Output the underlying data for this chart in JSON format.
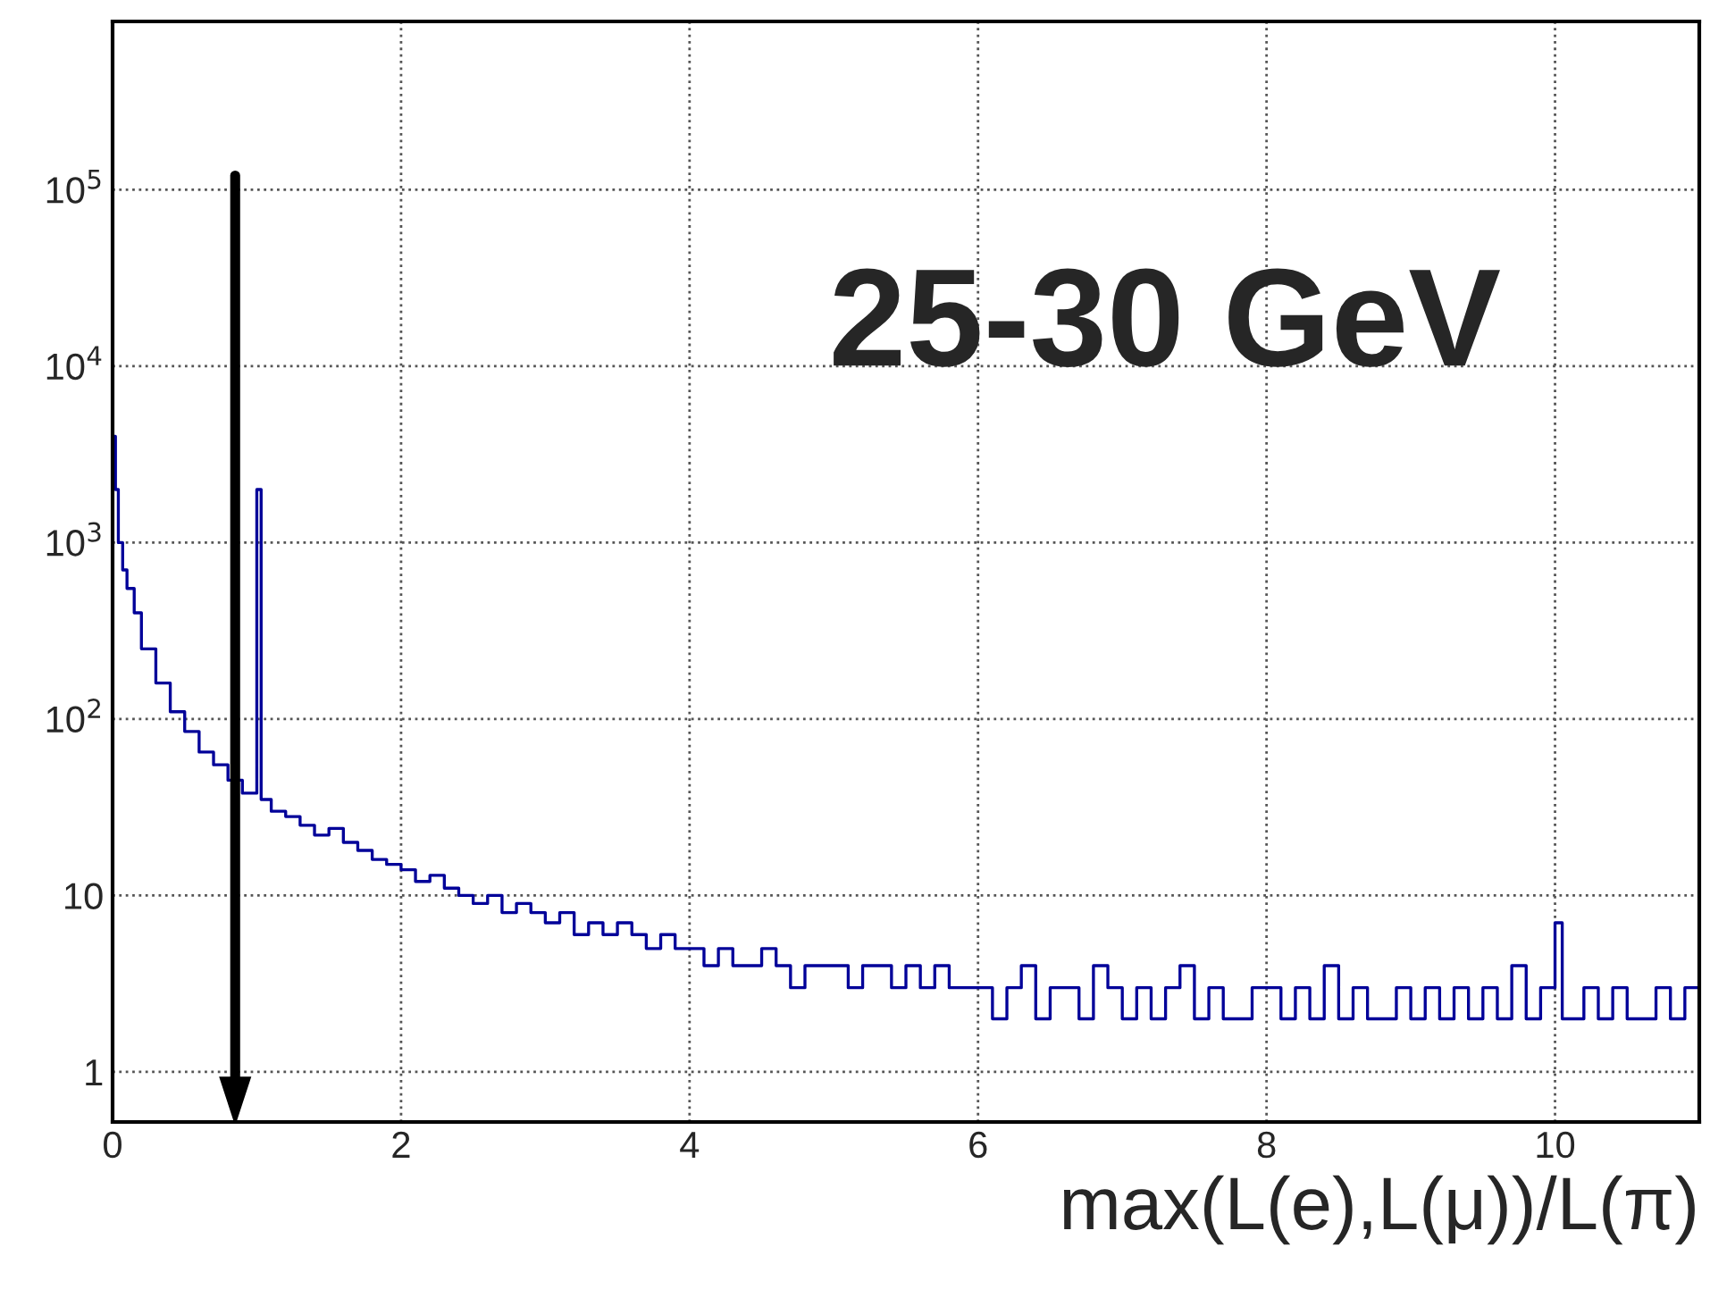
{
  "chart_data": {
    "type": "histogram",
    "xlabel": "max(L(e),L(μ))/L(π)",
    "annotations": [
      "25-30 GeV"
    ],
    "bins": [
      0,
      0.02,
      0.04,
      0.07,
      0.1,
      0.15,
      0.2,
      0.3,
      0.4,
      0.5,
      0.6,
      0.7,
      0.8,
      0.9,
      1.0,
      1.03,
      1.1,
      1.2,
      1.3,
      1.4,
      1.5,
      1.6,
      1.7,
      1.8,
      1.9,
      2.0,
      2.1,
      2.2,
      2.3,
      2.4,
      2.5,
      2.6,
      2.7,
      2.8,
      2.9,
      3.0,
      3.1,
      3.2,
      3.3,
      3.4,
      3.5,
      3.6,
      3.7,
      3.8,
      3.9,
      4.0,
      4.1,
      4.2,
      4.3,
      4.4,
      4.5,
      4.6,
      4.7,
      4.8,
      4.9,
      5.0,
      5.1,
      5.2,
      5.3,
      5.4,
      5.5,
      5.6,
      5.7,
      5.8,
      5.9,
      6.0,
      6.1,
      6.2,
      6.3,
      6.4,
      6.5,
      6.6,
      6.7,
      6.8,
      6.9,
      7.0,
      7.1,
      7.2,
      7.3,
      7.4,
      7.5,
      7.6,
      7.7,
      7.8,
      7.9,
      8.0,
      8.1,
      8.2,
      8.3,
      8.4,
      8.5,
      8.6,
      8.7,
      8.8,
      8.9,
      9.0,
      9.1,
      9.2,
      9.3,
      9.4,
      9.5,
      9.6,
      9.7,
      9.8,
      9.9,
      10.0,
      10.05,
      10.1,
      10.2,
      10.3,
      10.4,
      10.5,
      10.6,
      10.7,
      10.8,
      10.9,
      11.0
    ],
    "values": [
      4000,
      2000,
      1000,
      700,
      550,
      400,
      250,
      160,
      110,
      85,
      65,
      55,
      45,
      38,
      2000,
      35,
      30,
      28,
      25,
      22,
      24,
      20,
      18,
      16,
      15,
      14,
      12,
      13,
      11,
      10,
      9,
      10,
      8,
      9,
      8,
      7,
      8,
      6,
      7,
      6,
      7,
      6,
      5,
      6,
      5,
      5,
      4,
      5,
      4,
      4,
      5,
      4,
      3,
      4,
      4,
      4,
      3,
      4,
      4,
      3,
      4,
      3,
      4,
      3,
      3,
      3,
      2,
      3,
      4,
      2,
      3,
      3,
      2,
      4,
      3,
      2,
      3,
      2,
      3,
      4,
      2,
      3,
      2,
      2,
      3,
      3,
      2,
      3,
      2,
      4,
      2,
      3,
      2,
      2,
      3,
      2,
      3,
      2,
      3,
      2,
      3,
      2,
      4,
      2,
      3,
      7,
      2,
      2,
      3,
      2,
      3,
      2,
      2,
      3,
      2,
      3
    ],
    "color": "#000099",
    "xlim": [
      0,
      11
    ],
    "xticks": [
      0,
      2,
      4,
      6,
      8,
      10
    ],
    "ylim": [
      0.52,
      900000
    ],
    "yticks": [
      {
        "value": 1,
        "label": "1"
      },
      {
        "value": 10,
        "label": "10"
      },
      {
        "value": 100,
        "label": "10$^{2}$"
      },
      {
        "value": 1000,
        "label": "10$^{3}$"
      },
      {
        "value": 10000,
        "label": "10$^{4}$"
      },
      {
        "value": 100000,
        "label": "10$^{5}$"
      }
    ],
    "log": "y",
    "grid": true,
    "ref_lines": [
      {
        "axis": "x",
        "value": 0.85,
        "color": "#000000"
      }
    ]
  }
}
